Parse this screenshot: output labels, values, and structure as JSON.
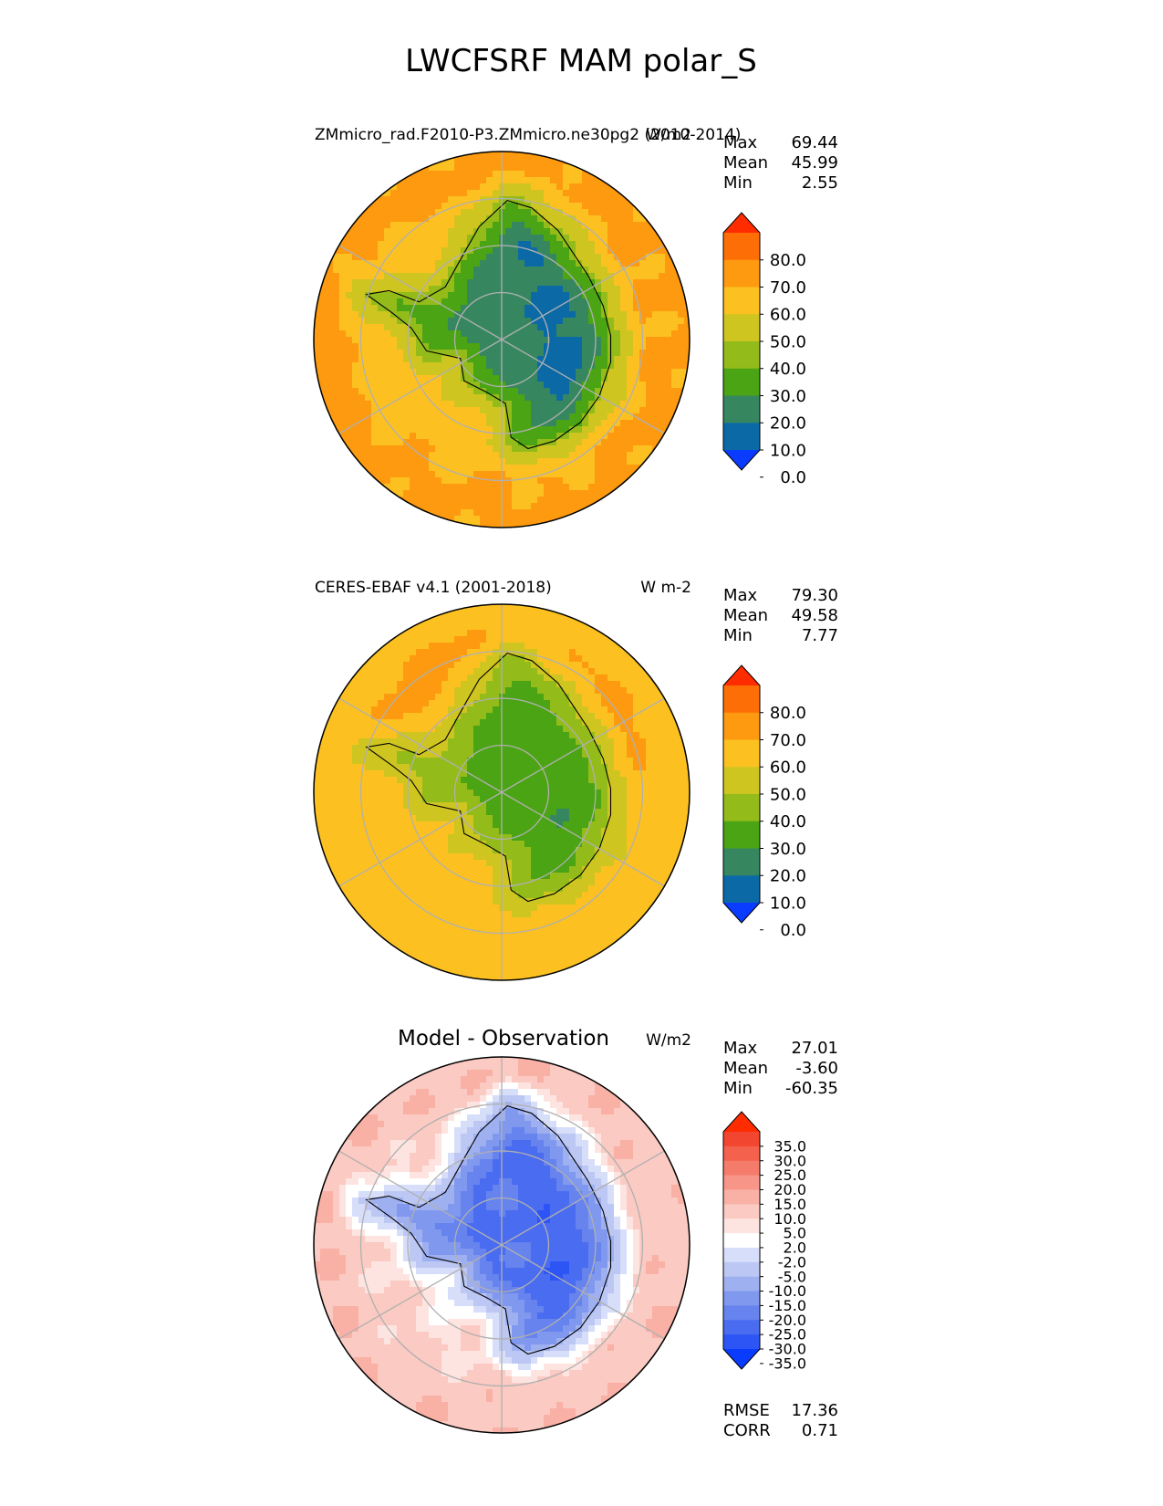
{
  "page": {
    "title": "LWCFSRF MAM polar_S"
  },
  "chart_data": [
    {
      "type": "heatmap",
      "projection": "south-polar-stereographic",
      "title": "ZMmicro_rad.F2010-P3.ZMmicro.ne30pg2 (2010-2014)",
      "units": "W/m2",
      "stats": {
        "labels": [
          "Max",
          "Mean",
          "Min"
        ],
        "values": [
          "69.44",
          "45.99",
          "2.55"
        ]
      },
      "colorbar": {
        "ticks": [
          "80.0",
          "70.0",
          "60.0",
          "50.0",
          "40.0",
          "30.0",
          "20.0",
          "10.0",
          "0.0"
        ],
        "levels": [
          0,
          10,
          20,
          30,
          40,
          50,
          60,
          70,
          80
        ],
        "colors": [
          "#0a3cff",
          "#0b6aa6",
          "#368760",
          "#4aa413",
          "#93bb1a",
          "#cfc521",
          "#fcc121",
          "#fd9a10",
          "#fe6e07",
          "#ff2c00"
        ],
        "extend": "both"
      },
      "field": {
        "ocean_outer": 62,
        "ocean_mid": 56,
        "coastal_ring": 38,
        "interior_west": 22,
        "interior_east": 5
      }
    },
    {
      "type": "heatmap",
      "projection": "south-polar-stereographic",
      "title": "CERES-EBAF v4.1 (2001-2018)",
      "units": "W m-2",
      "stats": {
        "labels": [
          "Max",
          "Mean",
          "Min"
        ],
        "values": [
          "79.30",
          "49.58",
          "7.77"
        ]
      },
      "colorbar": {
        "ticks": [
          "80.0",
          "70.0",
          "60.0",
          "50.0",
          "40.0",
          "30.0",
          "20.0",
          "10.0",
          "0.0"
        ],
        "levels": [
          0,
          10,
          20,
          30,
          40,
          50,
          60,
          70,
          80
        ],
        "colors": [
          "#0a3cff",
          "#0b6aa6",
          "#368760",
          "#4aa413",
          "#93bb1a",
          "#cfc521",
          "#fcc121",
          "#fd9a10",
          "#fe6e07",
          "#ff2c00"
        ],
        "extend": "both"
      },
      "field": {
        "ocean_outer": 55,
        "ocean_band": 64,
        "coastal_ring": 45,
        "interior_west": 36,
        "interior_east": 18
      }
    },
    {
      "type": "heatmap",
      "projection": "south-polar-stereographic",
      "title": "Model - Observation",
      "units": "W/m2",
      "stats": {
        "labels": [
          "Max",
          "Mean",
          "Min"
        ],
        "values": [
          "27.01",
          "-3.60",
          "-60.35"
        ]
      },
      "colorbar": {
        "ticks": [
          "35.0",
          "30.0",
          "25.0",
          "20.0",
          "15.0",
          "10.0",
          "5.0",
          "2.0",
          "-2.0",
          "-5.0",
          "-10.0",
          "-15.0",
          "-20.0",
          "-25.0",
          "-30.0",
          "-35.0"
        ],
        "levels": [
          -35,
          -30,
          -25,
          -20,
          -15,
          -10,
          -5,
          -2,
          2,
          5,
          10,
          15,
          20,
          25,
          30,
          35
        ],
        "colors": [
          "#0a3cff",
          "#2d55f5",
          "#4a6cf0",
          "#6683ee",
          "#8098ee",
          "#9fb0f0",
          "#bcc7f3",
          "#d7defa",
          "#ffffff",
          "#fde4e0",
          "#fbcac2",
          "#f9b0a5",
          "#f79688",
          "#f57b6b",
          "#f4614d",
          "#f34630",
          "#ff2c00"
        ],
        "extend": "both"
      },
      "field": {
        "ocean_outer": 9,
        "ocean_mid": 4,
        "coastal_ring": -8,
        "interior_west": -22,
        "interior_east": -30
      },
      "metrics": {
        "labels": [
          "RMSE",
          "CORR"
        ],
        "values": [
          "17.36",
          "0.71"
        ]
      }
    }
  ]
}
